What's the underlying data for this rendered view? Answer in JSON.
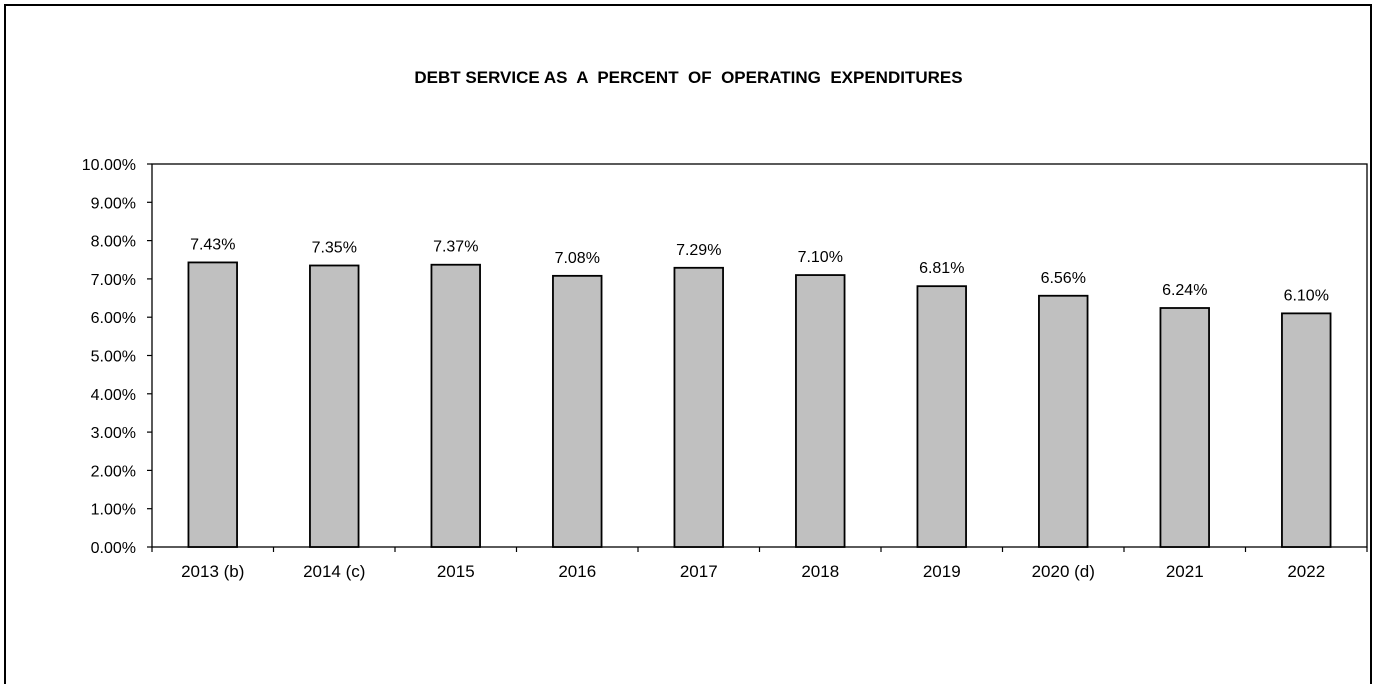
{
  "chart_data": {
    "type": "bar",
    "title": "DEBT SERVICE AS  A  PERCENT  OF  OPERATING  EXPENDITURES",
    "xlabel": "",
    "ylabel": "",
    "categories": [
      "2013 (b)",
      "2014 (c)",
      "2015",
      "2016",
      "2017",
      "2018",
      "2019",
      "2020 (d)",
      "2021",
      "2022"
    ],
    "values": [
      7.43,
      7.35,
      7.37,
      7.08,
      7.29,
      7.1,
      6.81,
      6.56,
      6.24,
      6.1
    ],
    "data_labels": [
      "7.43%",
      "7.35%",
      "7.37%",
      "7.08%",
      "7.29%",
      "7.10%",
      "6.81%",
      "6.56%",
      "6.24%",
      "6.10%"
    ],
    "ylim": [
      0,
      10
    ],
    "yticks": [
      0,
      1,
      2,
      3,
      4,
      5,
      6,
      7,
      8,
      9,
      10
    ],
    "ytick_labels": [
      "0.00%",
      "1.00%",
      "2.00%",
      "3.00%",
      "4.00%",
      "5.00%",
      "6.00%",
      "7.00%",
      "8.00%",
      "9.00%",
      "10.00%"
    ],
    "grid": false,
    "legend": "none",
    "colors": {
      "bar_fill": "#c0c0c0",
      "bar_stroke": "#000000",
      "axis": "#000000"
    }
  }
}
